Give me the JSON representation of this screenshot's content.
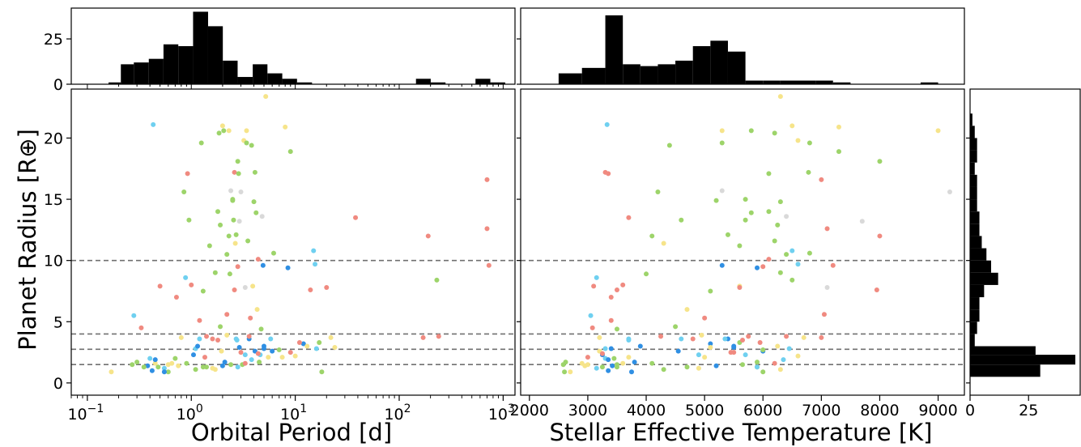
{
  "chart_data": {
    "type": "scatter",
    "ylabel": "Planet Radius [R⊕]",
    "xlabel_left": "Orbital Period [d]",
    "xlabel_right": "Stellar Effective Temperature [K]",
    "ylim": [
      -1,
      24
    ],
    "y_ticks": [
      0,
      5,
      10,
      15,
      20
    ],
    "left_x_scale": "log",
    "left_xlim": [
      0.07,
      1300
    ],
    "left_x_ticks": [
      {
        "value": 0.1,
        "base": "10",
        "exp": "−1"
      },
      {
        "value": 1,
        "base": "10",
        "exp": "0"
      },
      {
        "value": 10,
        "base": "10",
        "exp": "1"
      },
      {
        "value": 100,
        "base": "10",
        "exp": "2"
      },
      {
        "value": 1000,
        "base": "10",
        "exp": "3"
      }
    ],
    "right_xlim": [
      1850,
      9450
    ],
    "right_x_ticks": [
      "2000",
      "3000",
      "4000",
      "5000",
      "6000",
      "7000",
      "8000",
      "9000"
    ],
    "reference_lines_radius": [
      1.5,
      2.75,
      4.0,
      10.0
    ],
    "colors": {
      "red": "#f08a80",
      "green": "#9dd46a",
      "yellow": "#f6e48a",
      "lightblue": "#6fd0f0",
      "blue": "#2f8fe3",
      "gray": "#d9d9d9"
    },
    "points": [
      {
        "p": 0.17,
        "t": 2700,
        "r": 0.9,
        "c": "yellow"
      },
      {
        "p": 0.27,
        "t": 2580,
        "r": 1.5,
        "c": "green"
      },
      {
        "p": 0.3,
        "t": 2620,
        "r": 1.7,
        "c": "green"
      },
      {
        "p": 0.28,
        "t": 3050,
        "r": 5.5,
        "c": "lightblue"
      },
      {
        "p": 0.33,
        "t": 3080,
        "r": 4.5,
        "c": "red"
      },
      {
        "p": 0.38,
        "t": 3420,
        "r": 1.4,
        "c": "blue"
      },
      {
        "p": 0.4,
        "t": 3300,
        "r": 2.0,
        "c": "lightblue"
      },
      {
        "p": 0.42,
        "t": 3350,
        "r": 1.0,
        "c": "blue"
      },
      {
        "p": 0.43,
        "t": 3330,
        "r": 21.1,
        "c": "lightblue"
      },
      {
        "p": 0.45,
        "t": 2900,
        "r": 1.6,
        "c": "yellow"
      },
      {
        "p": 0.48,
        "t": 3500,
        "r": 1.3,
        "c": "green"
      },
      {
        "p": 0.5,
        "t": 3100,
        "r": 7.9,
        "c": "red"
      },
      {
        "p": 0.55,
        "t": 3150,
        "r": 1.2,
        "c": "lightblue"
      },
      {
        "p": 0.6,
        "t": 3000,
        "r": 1.5,
        "c": "yellow"
      },
      {
        "p": 0.7,
        "t": 3450,
        "r": 2.0,
        "c": "green"
      },
      {
        "p": 0.72,
        "t": 3400,
        "r": 7.0,
        "c": "red"
      },
      {
        "p": 0.8,
        "t": 3200,
        "r": 3.7,
        "c": "yellow"
      },
      {
        "p": 0.85,
        "t": 4200,
        "r": 15.6,
        "c": "green"
      },
      {
        "p": 0.88,
        "t": 3150,
        "r": 8.6,
        "c": "lightblue"
      },
      {
        "p": 0.92,
        "t": 3350,
        "r": 17.1,
        "c": "red"
      },
      {
        "p": 0.95,
        "t": 4600,
        "r": 13.3,
        "c": "green"
      },
      {
        "p": 1.0,
        "t": 3600,
        "r": 8.0,
        "c": "red"
      },
      {
        "p": 1.05,
        "t": 3250,
        "r": 2.3,
        "c": "blue"
      },
      {
        "p": 1.1,
        "t": 3300,
        "r": 2.8,
        "c": "lightblue"
      },
      {
        "p": 1.15,
        "t": 3900,
        "r": 3.0,
        "c": "blue"
      },
      {
        "p": 1.2,
        "t": 3400,
        "r": 5.1,
        "c": "red"
      },
      {
        "p": 1.25,
        "t": 5300,
        "r": 19.6,
        "c": "green"
      },
      {
        "p": 1.3,
        "t": 5100,
        "r": 7.5,
        "c": "green"
      },
      {
        "p": 1.35,
        "t": 3000,
        "r": 2.1,
        "c": "red"
      },
      {
        "p": 1.4,
        "t": 5900,
        "r": 1.3,
        "c": "green"
      },
      {
        "p": 1.5,
        "t": 5600,
        "r": 11.2,
        "c": "green"
      },
      {
        "p": 1.6,
        "t": 4800,
        "r": 3.6,
        "c": "red"
      },
      {
        "p": 1.7,
        "t": 6300,
        "r": 1.1,
        "c": "yellow"
      },
      {
        "p": 1.8,
        "t": 6100,
        "r": 14.0,
        "c": "green"
      },
      {
        "p": 1.85,
        "t": 6200,
        "r": 20.4,
        "c": "green"
      },
      {
        "p": 1.9,
        "t": 4500,
        "r": 4.6,
        "c": "green"
      },
      {
        "p": 1.95,
        "t": 3200,
        "r": 2.6,
        "c": "yellow"
      },
      {
        "p": 2.0,
        "t": 6500,
        "r": 21.0,
        "c": "yellow"
      },
      {
        "p": 2.05,
        "t": 5800,
        "r": 20.6,
        "c": "green"
      },
      {
        "p": 2.1,
        "t": 3800,
        "r": 1.7,
        "c": "blue"
      },
      {
        "p": 2.2,
        "t": 6400,
        "r": 10.5,
        "c": "green"
      },
      {
        "p": 2.3,
        "t": 4100,
        "r": 12.0,
        "c": "green"
      },
      {
        "p": 2.35,
        "t": 4000,
        "r": 8.9,
        "c": "green"
      },
      {
        "p": 2.4,
        "t": 5300,
        "r": 15.7,
        "c": "gray"
      },
      {
        "p": 2.5,
        "t": 5200,
        "r": 14.9,
        "c": "green"
      },
      {
        "p": 2.55,
        "t": 5700,
        "r": 13.3,
        "c": "green"
      },
      {
        "p": 2.6,
        "t": 3300,
        "r": 17.2,
        "c": "red"
      },
      {
        "p": 2.65,
        "t": 4300,
        "r": 11.4,
        "c": "yellow"
      },
      {
        "p": 2.7,
        "t": 5400,
        "r": 12.1,
        "c": "green"
      },
      {
        "p": 2.75,
        "t": 3700,
        "r": 3.5,
        "c": "lightblue"
      },
      {
        "p": 2.8,
        "t": 6000,
        "r": 9.5,
        "c": "red"
      },
      {
        "p": 2.85,
        "t": 6100,
        "r": 17.1,
        "c": "green"
      },
      {
        "p": 2.9,
        "t": 5500,
        "r": 2.9,
        "c": "blue"
      },
      {
        "p": 3.0,
        "t": 5500,
        "r": 2.5,
        "c": "red"
      },
      {
        "p": 3.1,
        "t": 3500,
        "r": 1.5,
        "c": "green"
      },
      {
        "p": 3.2,
        "t": 6600,
        "r": 19.8,
        "c": "yellow"
      },
      {
        "p": 3.3,
        "t": 4900,
        "r": 2.3,
        "c": "lightblue"
      },
      {
        "p": 3.4,
        "t": 5300,
        "r": 20.6,
        "c": "yellow"
      },
      {
        "p": 3.5,
        "t": 6200,
        "r": 11.6,
        "c": "green"
      },
      {
        "p": 3.6,
        "t": 5400,
        "r": 3.6,
        "c": "blue"
      },
      {
        "p": 3.7,
        "t": 5000,
        "r": 5.3,
        "c": "red"
      },
      {
        "p": 3.8,
        "t": 4400,
        "r": 19.4,
        "c": "green"
      },
      {
        "p": 3.9,
        "t": 5600,
        "r": 7.9,
        "c": "yellow"
      },
      {
        "p": 4.0,
        "t": 6300,
        "r": 14.8,
        "c": "green"
      },
      {
        "p": 4.1,
        "t": 6000,
        "r": 2.6,
        "c": "blue"
      },
      {
        "p": 4.2,
        "t": 5800,
        "r": 13.9,
        "c": "green"
      },
      {
        "p": 4.3,
        "t": 4700,
        "r": 6.0,
        "c": "yellow"
      },
      {
        "p": 4.4,
        "t": 6100,
        "r": 10.1,
        "c": "red"
      },
      {
        "p": 4.5,
        "t": 5900,
        "r": 1.7,
        "c": "green"
      },
      {
        "p": 4.6,
        "t": 5700,
        "r": 2.3,
        "c": "lightblue"
      },
      {
        "p": 4.7,
        "t": 3500,
        "r": 4.4,
        "c": "green"
      },
      {
        "p": 4.8,
        "t": 6400,
        "r": 13.6,
        "c": "gray"
      },
      {
        "p": 4.9,
        "t": 5300,
        "r": 9.6,
        "c": "blue"
      },
      {
        "p": 5.0,
        "t": 5500,
        "r": 3.0,
        "c": "blue"
      },
      {
        "p": 5.2,
        "t": 6300,
        "r": 23.4,
        "c": "yellow"
      },
      {
        "p": 5.5,
        "t": 3700,
        "r": 2.1,
        "c": "yellow"
      },
      {
        "p": 5.8,
        "t": 4600,
        "r": 3.6,
        "c": "lightblue"
      },
      {
        "p": 6.2,
        "t": 6800,
        "r": 10.6,
        "c": "green"
      },
      {
        "p": 7.0,
        "t": 6000,
        "r": 2.7,
        "c": "green"
      },
      {
        "p": 8.0,
        "t": 7300,
        "r": 20.9,
        "c": "yellow"
      },
      {
        "p": 8.5,
        "t": 5900,
        "r": 9.4,
        "c": "blue"
      },
      {
        "p": 9.0,
        "t": 7300,
        "r": 18.9,
        "c": "green"
      },
      {
        "p": 10.0,
        "t": 6600,
        "r": 2.2,
        "c": "yellow"
      },
      {
        "p": 12.0,
        "t": 5100,
        "r": 3.2,
        "c": "blue"
      },
      {
        "p": 14.0,
        "t": 3500,
        "r": 7.6,
        "c": "red"
      },
      {
        "p": 15.0,
        "t": 6500,
        "r": 10.8,
        "c": "lightblue"
      },
      {
        "p": 15.5,
        "t": 6600,
        "r": 9.7,
        "c": "lightblue"
      },
      {
        "p": 17.0,
        "t": 5600,
        "r": 3.3,
        "c": "green"
      },
      {
        "p": 18.0,
        "t": 6000,
        "r": 0.9,
        "c": "green"
      },
      {
        "p": 20.0,
        "t": 5600,
        "r": 7.8,
        "c": "red"
      },
      {
        "p": 22.0,
        "t": 6700,
        "r": 3.7,
        "c": "yellow"
      },
      {
        "p": 24.0,
        "t": 5100,
        "r": 2.9,
        "c": "yellow"
      },
      {
        "p": 38.0,
        "t": 3700,
        "r": 13.5,
        "c": "red"
      },
      {
        "p": 170.0,
        "t": 7000,
        "r": 3.7,
        "c": "red"
      },
      {
        "p": 190.0,
        "t": 8000,
        "r": 12.0,
        "c": "red"
      },
      {
        "p": 230.0,
        "t": 6500,
        "r": 8.4,
        "c": "green"
      },
      {
        "p": 240.0,
        "t": 6400,
        "r": 3.8,
        "c": "red"
      },
      {
        "p": 700.0,
        "t": 7000,
        "r": 16.6,
        "c": "red"
      },
      {
        "p": 700.0,
        "t": 7100,
        "r": 12.6,
        "c": "red"
      },
      {
        "p": 730.0,
        "t": 7200,
        "r": 9.6,
        "c": "red"
      },
      {
        "p": 3.0,
        "t": 9200,
        "r": 15.6,
        "c": "gray"
      },
      {
        "p": 2.9,
        "t": 7700,
        "r": 13.2,
        "c": "gray"
      },
      {
        "p": 3.3,
        "t": 7100,
        "r": 7.8,
        "c": "gray"
      },
      {
        "p": 2.8,
        "t": 8000,
        "r": 18.1,
        "c": "green"
      },
      {
        "p": 2.3,
        "t": 9000,
        "r": 20.6,
        "c": "yellow"
      },
      {
        "p": 2.6,
        "t": 7950,
        "r": 7.6,
        "c": "red"
      },
      {
        "p": 2.2,
        "t": 7050,
        "r": 5.6,
        "c": "red"
      },
      {
        "p": 3.4,
        "t": 6800,
        "r": 19.6,
        "c": "green"
      },
      {
        "p": 4.1,
        "t": 6780,
        "r": 17.2,
        "c": "green"
      },
      {
        "p": 2.5,
        "t": 5700,
        "r": 15.0,
        "c": "green"
      },
      {
        "p": 1.9,
        "t": 6250,
        "r": 12.9,
        "c": "green"
      },
      {
        "p": 1.7,
        "t": 6300,
        "r": 9.0,
        "c": "green"
      },
      {
        "p": 0.35,
        "t": 3250,
        "r": 1.3,
        "c": "green"
      },
      {
        "p": 0.45,
        "t": 3350,
        "r": 1.9,
        "c": "blue"
      },
      {
        "p": 0.65,
        "t": 3600,
        "r": 1.6,
        "c": "yellow"
      },
      {
        "p": 0.75,
        "t": 2950,
        "r": 1.4,
        "c": "yellow"
      },
      {
        "p": 0.9,
        "t": 4100,
        "r": 1.6,
        "c": "green"
      },
      {
        "p": 1.1,
        "t": 4300,
        "r": 1.1,
        "c": "green"
      },
      {
        "p": 1.3,
        "t": 4700,
        "r": 1.3,
        "c": "green"
      },
      {
        "p": 1.6,
        "t": 4900,
        "r": 1.2,
        "c": "yellow"
      },
      {
        "p": 2.0,
        "t": 5200,
        "r": 1.4,
        "c": "blue"
      },
      {
        "p": 2.4,
        "t": 5650,
        "r": 1.5,
        "c": "green"
      },
      {
        "p": 2.8,
        "t": 5900,
        "r": 1.3,
        "c": "lightblue"
      },
      {
        "p": 3.3,
        "t": 6200,
        "r": 1.6,
        "c": "red"
      },
      {
        "p": 3.8,
        "t": 6350,
        "r": 1.9,
        "c": "lightblue"
      },
      {
        "p": 4.4,
        "t": 3250,
        "r": 2.4,
        "c": "red"
      },
      {
        "p": 5.0,
        "t": 3400,
        "r": 2.8,
        "c": "blue"
      },
      {
        "p": 6.0,
        "t": 4550,
        "r": 2.6,
        "c": "blue"
      },
      {
        "p": 7.5,
        "t": 5000,
        "r": 2.1,
        "c": "yellow"
      },
      {
        "p": 9.0,
        "t": 5450,
        "r": 2.5,
        "c": "red"
      },
      {
        "p": 11.0,
        "t": 5950,
        "r": 3.3,
        "c": "red"
      },
      {
        "p": 13.0,
        "t": 6250,
        "r": 3.0,
        "c": "yellow"
      },
      {
        "p": 16.0,
        "t": 6450,
        "r": 2.8,
        "c": "lightblue"
      },
      {
        "p": 2.2,
        "t": 4950,
        "r": 3.9,
        "c": "yellow"
      },
      {
        "p": 2.7,
        "t": 5350,
        "r": 3.6,
        "c": "lightblue"
      },
      {
        "p": 3.6,
        "t": 5750,
        "r": 3.8,
        "c": "red"
      },
      {
        "p": 1.2,
        "t": 3700,
        "r": 3.6,
        "c": "lightblue"
      },
      {
        "p": 1.4,
        "t": 4250,
        "r": 3.8,
        "c": "red"
      },
      {
        "p": 0.6,
        "t": 2600,
        "r": 0.9,
        "c": "green"
      },
      {
        "p": 0.55,
        "t": 3750,
        "r": 0.9,
        "c": "blue"
      },
      {
        "p": 1.8,
        "t": 5650,
        "r": 3.5,
        "c": "red"
      }
    ],
    "hist_period": {
      "bin_edges": [
        0.16,
        0.21,
        0.28,
        0.39,
        0.54,
        0.75,
        1.04,
        1.45,
        2.01,
        2.79,
        3.9,
        5.4,
        7.5,
        10.4,
        14.5,
        20.1,
        28,
        39,
        54,
        75,
        104,
        145,
        201,
        279,
        390,
        542,
        753,
        1046
      ],
      "counts": [
        1,
        11,
        12,
        14,
        22,
        21,
        40,
        32,
        13,
        4,
        11,
        6,
        3,
        1,
        0,
        0,
        0,
        0,
        0,
        0,
        0,
        3,
        1,
        0,
        0,
        3,
        1
      ],
      "y_ticks": [
        0,
        25
      ]
    },
    "hist_teff": {
      "bin_edges": [
        2500,
        2900,
        3300,
        3600,
        3900,
        4200,
        4500,
        4800,
        5100,
        5400,
        5700,
        6000,
        6300,
        6600,
        6900,
        7200,
        7500,
        7800,
        8100,
        8400,
        8700,
        9000,
        9300
      ],
      "counts": [
        6,
        9,
        38,
        11,
        10,
        11,
        13,
        21,
        24,
        18,
        2,
        2,
        2,
        2,
        2,
        1,
        0,
        0,
        0,
        0,
        1,
        0
      ],
      "y_ticks": [
        0,
        25
      ]
    },
    "hist_radius": {
      "bin_edges": [
        0.5,
        1.5,
        2.3,
        3.0,
        4.0,
        5.0,
        6.0,
        7.0,
        8.0,
        9.0,
        10.0,
        11.0,
        12.0,
        13.0,
        14.0,
        15.0,
        16.0,
        17.0,
        18.0,
        19.0,
        20.0,
        21.0,
        22.0
      ],
      "counts": [
        30,
        45,
        28,
        2,
        3,
        4,
        4,
        6,
        12,
        9,
        7,
        5,
        4,
        4,
        3,
        3,
        3,
        2,
        3,
        3,
        2,
        1
      ],
      "x_ticks": [
        0,
        25
      ]
    }
  }
}
